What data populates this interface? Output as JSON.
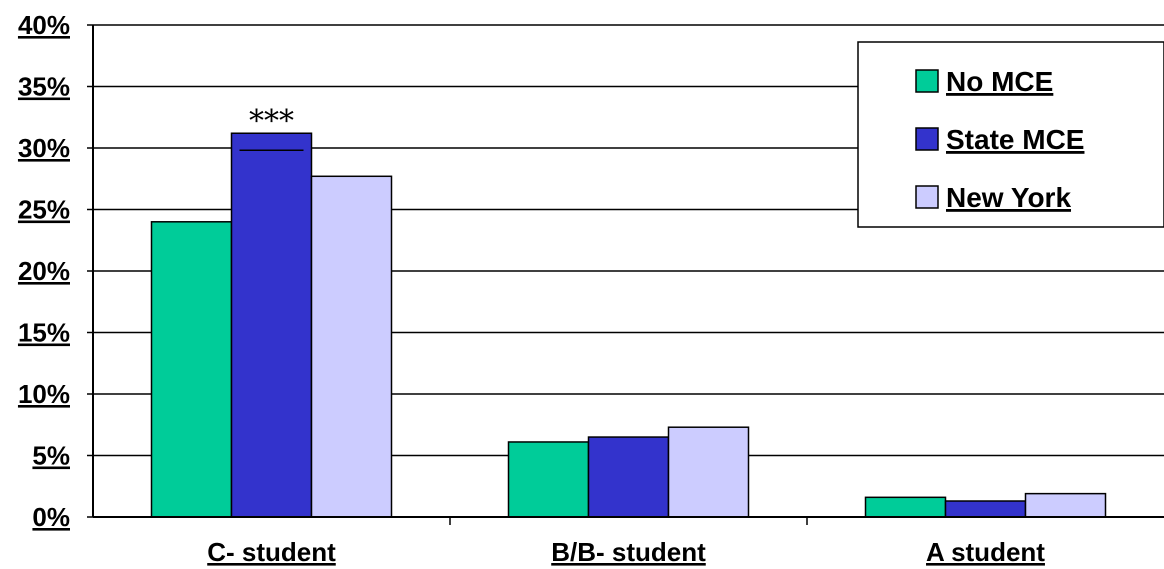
{
  "chart_data": {
    "type": "bar",
    "title": "",
    "xlabel": "",
    "ylabel": "",
    "ylim": [
      0,
      40
    ],
    "yticks": [
      "0%",
      "5%",
      "10%",
      "15%",
      "20%",
      "25%",
      "30%",
      "35%",
      "40%"
    ],
    "grid": true,
    "legend_position": "top-right",
    "categories": [
      "C- student",
      "B/B- student",
      "A student"
    ],
    "series": [
      {
        "name": "No MCE",
        "color": "#00CC99",
        "values": [
          24,
          6.1,
          1.6
        ]
      },
      {
        "name": "State MCE",
        "color": "#3333CC",
        "values": [
          31.2,
          6.5,
          1.3
        ]
      },
      {
        "name": "New York",
        "color": "#CCCCFF",
        "values": [
          27.7,
          7.3,
          1.9
        ]
      }
    ],
    "annotations": [
      {
        "text": "***",
        "category": "C- student",
        "series": "State MCE"
      }
    ]
  }
}
